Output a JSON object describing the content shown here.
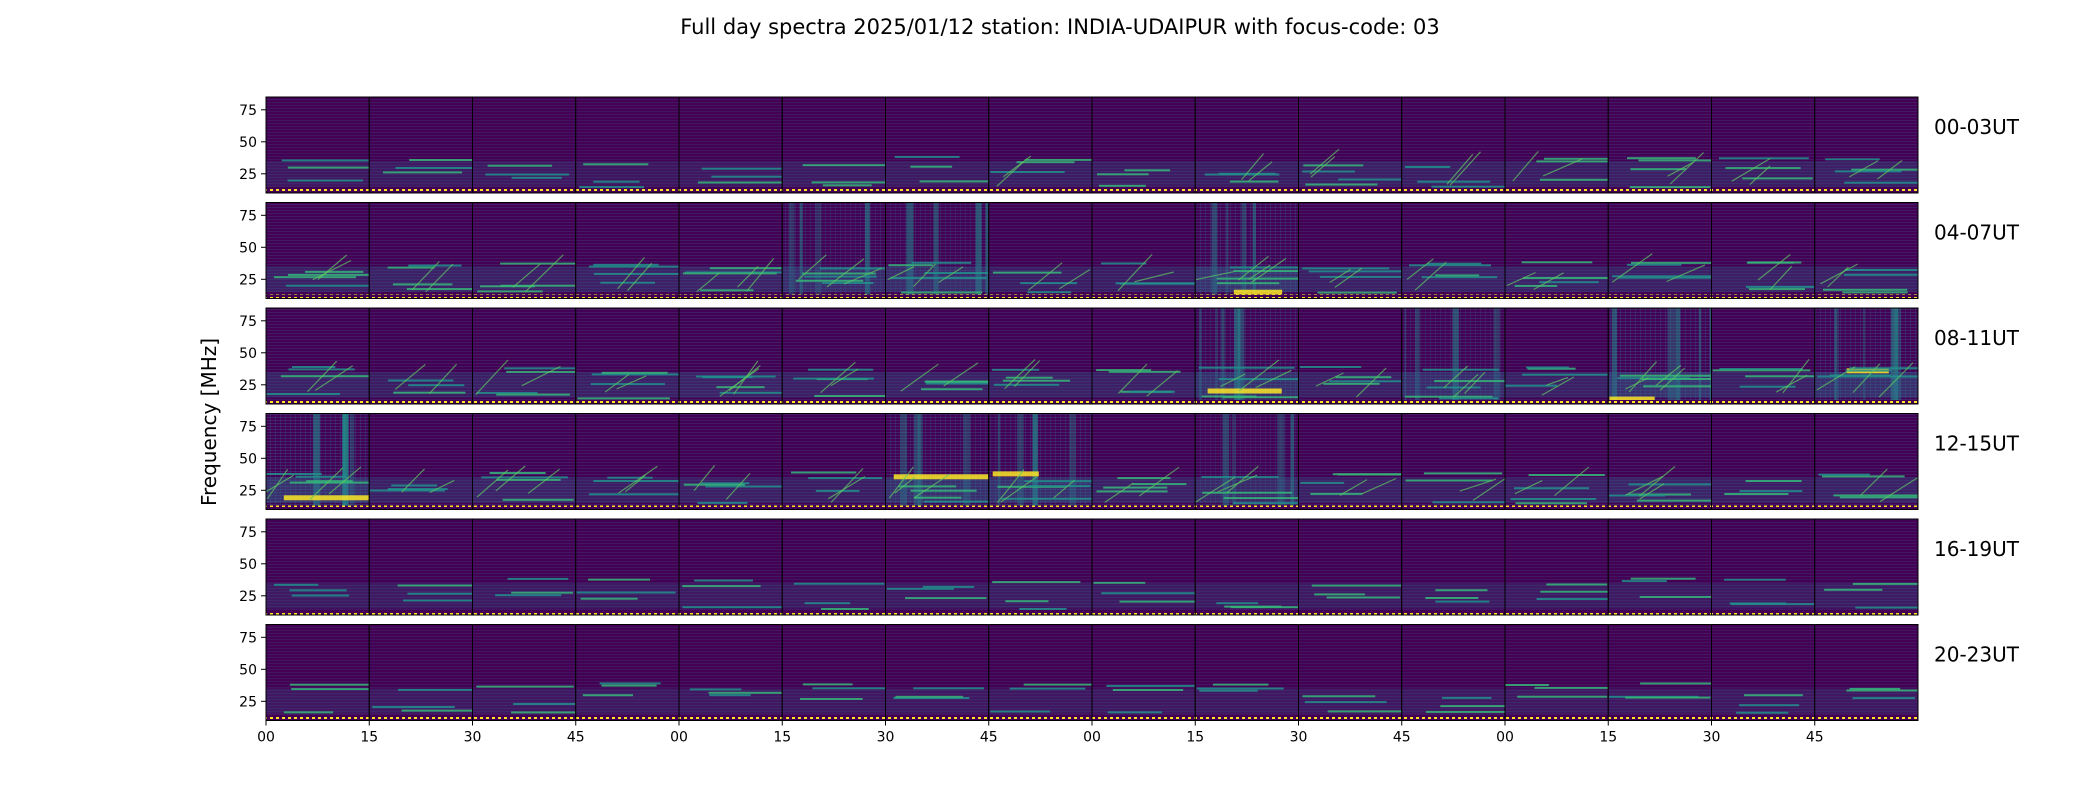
{
  "figure": {
    "title": "Full day spectra 2025/01/12 station: INDIA-UDAIPUR with focus-code: 03",
    "ylabel": "Frequency [MHz]"
  },
  "chart_data": {
    "type": "heatmap",
    "title": "Full day spectra 2025/01/12 station: INDIA-UDAIPUR with focus-code: 03",
    "ylabel": "Frequency [MHz]",
    "xlabel": "",
    "colormap": "viridis",
    "ylim": [
      10,
      85
    ],
    "y_ticks": [
      "75",
      "50",
      "25"
    ],
    "y_tick_values": [
      75,
      50,
      25
    ],
    "x_ticks": [
      "00",
      "15",
      "30",
      "45",
      "00",
      "15",
      "30",
      "45",
      "00",
      "15",
      "30",
      "45",
      "00",
      "15",
      "30",
      "45"
    ],
    "panels_per_row": 16,
    "rows": [
      {
        "label": "00-03UT",
        "activity": [
          0.2,
          0.25,
          0.2,
          0.15,
          0.2,
          0.25,
          0.25,
          0.35,
          0.3,
          0.35,
          0.4,
          0.35,
          0.35,
          0.4,
          0.35,
          0.4
        ]
      },
      {
        "label": "04-07UT",
        "activity": [
          0.4,
          0.45,
          0.4,
          0.45,
          0.5,
          0.7,
          0.65,
          0.35,
          0.35,
          0.85,
          0.4,
          0.45,
          0.45,
          0.4,
          0.4,
          0.4
        ]
      },
      {
        "label": "08-11UT",
        "activity": [
          0.45,
          0.35,
          0.4,
          0.4,
          0.5,
          0.4,
          0.45,
          0.45,
          0.4,
          0.8,
          0.4,
          0.7,
          0.4,
          0.85,
          0.4,
          0.8
        ]
      },
      {
        "label": "12-15UT",
        "activity": [
          0.85,
          0.4,
          0.5,
          0.35,
          0.4,
          0.35,
          0.8,
          0.8,
          0.4,
          0.6,
          0.4,
          0.35,
          0.4,
          0.55,
          0.3,
          0.45
        ]
      },
      {
        "label": "16-19UT",
        "activity": [
          0.25,
          0.25,
          0.25,
          0.25,
          0.25,
          0.25,
          0.25,
          0.3,
          0.25,
          0.25,
          0.25,
          0.25,
          0.25,
          0.25,
          0.25,
          0.3
        ]
      },
      {
        "label": "20-23UT",
        "activity": [
          0.2,
          0.2,
          0.2,
          0.2,
          0.2,
          0.2,
          0.2,
          0.2,
          0.2,
          0.2,
          0.2,
          0.2,
          0.2,
          0.2,
          0.2,
          0.2
        ]
      }
    ],
    "grid": false,
    "legend": "none"
  }
}
